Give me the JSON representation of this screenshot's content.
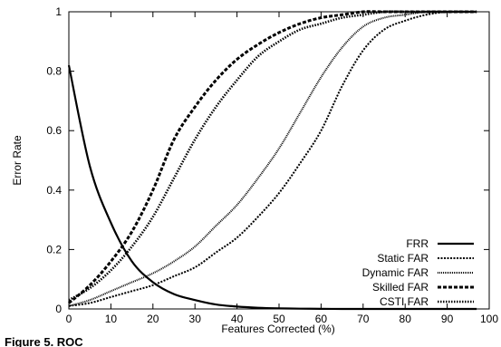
{
  "caption": "Figure 5. ROC",
  "chart_data": {
    "type": "line",
    "xlabel": "Features Corrected (%)",
    "ylabel": "Error Rate",
    "xlim": [
      0,
      100
    ],
    "ylim": [
      0,
      1
    ],
    "xticks": [
      0,
      10,
      20,
      30,
      40,
      50,
      60,
      70,
      80,
      90,
      100
    ],
    "yticks": [
      0,
      0.2,
      0.4,
      0.6,
      0.8,
      1
    ],
    "ytick_labels": [
      "0",
      "0.2",
      "0.4",
      "0.6",
      "0.8",
      "1"
    ],
    "grid": false,
    "legend_position": "bottom-right",
    "x": [
      0,
      5,
      10,
      15,
      20,
      25,
      30,
      35,
      40,
      45,
      50,
      55,
      60,
      65,
      70,
      75,
      80,
      85,
      90,
      95,
      97
    ],
    "series": [
      {
        "name": "FRR",
        "style": "solid",
        "values": [
          0.82,
          0.48,
          0.29,
          0.16,
          0.09,
          0.05,
          0.03,
          0.015,
          0.008,
          0.004,
          0.002,
          0.001,
          0.0005,
          0,
          0,
          0,
          0,
          0,
          0,
          0,
          0
        ]
      },
      {
        "name": "Static FAR",
        "style": "dash-dense",
        "values": [
          0.01,
          0.02,
          0.04,
          0.06,
          0.08,
          0.11,
          0.14,
          0.19,
          0.24,
          0.31,
          0.39,
          0.49,
          0.6,
          0.75,
          0.87,
          0.94,
          0.97,
          0.99,
          1.0,
          1.0,
          1.0
        ]
      },
      {
        "name": "Dynamic FAR",
        "style": "dotted-fine",
        "values": [
          0.01,
          0.03,
          0.06,
          0.09,
          0.12,
          0.16,
          0.21,
          0.28,
          0.35,
          0.44,
          0.54,
          0.66,
          0.78,
          0.88,
          0.95,
          0.98,
          0.99,
          1.0,
          1.0,
          1.0,
          1.0
        ]
      },
      {
        "name": "Skilled FAR",
        "style": "dash-bold",
        "values": [
          0.02,
          0.08,
          0.16,
          0.26,
          0.4,
          0.57,
          0.68,
          0.77,
          0.84,
          0.89,
          0.93,
          0.96,
          0.98,
          0.99,
          1.0,
          1.0,
          1.0,
          1.0,
          1.0,
          1.0,
          1.0
        ]
      },
      {
        "name": "CSTI FAR",
        "style": "dotted-bold",
        "values": [
          0.03,
          0.07,
          0.13,
          0.21,
          0.31,
          0.44,
          0.57,
          0.68,
          0.77,
          0.85,
          0.9,
          0.94,
          0.96,
          0.98,
          0.99,
          1.0,
          1.0,
          1.0,
          1.0,
          1.0,
          1.0
        ]
      }
    ]
  }
}
